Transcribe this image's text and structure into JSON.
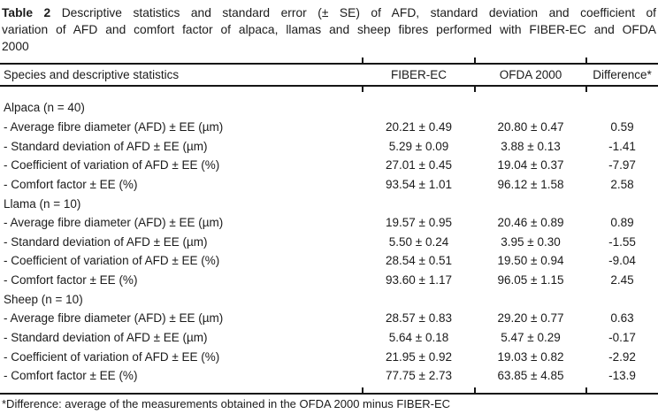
{
  "title": {
    "label": "Table 2",
    "line1": "Descriptive statistics and standard error (± SE) of AFD, standard deviation and coefficient of",
    "line2": "variation of AFD and comfort factor of alpaca, llamas and sheep fibres performed with FIBER-EC and OFDA",
    "line3": "2000"
  },
  "table": {
    "headers": {
      "species": "Species and descriptive statistics",
      "fiber_ec": "FIBER-EC",
      "ofda": "OFDA 2000",
      "difference": "Difference*"
    },
    "sections": [
      {
        "species": "Alpaca (n = 40)",
        "rows": [
          {
            "label": "- Average fibre diameter (AFD) ± EE (µm)",
            "fiber_ec": "20.21 ± 0.49",
            "ofda": "20.80 ± 0.47",
            "difference": "0.59"
          },
          {
            "label": "- Standard deviation of AFD ± EE (µm)",
            "fiber_ec": "5.29 ± 0.09",
            "ofda": "3.88 ± 0.13",
            "difference": "-1.41"
          },
          {
            "label": "- Coefficient of variation of AFD ± EE (%)",
            "fiber_ec": "27.01 ± 0.45",
            "ofda": "19.04 ± 0.37",
            "difference": "-7.97"
          },
          {
            "label": "- Comfort factor ± EE (%)",
            "fiber_ec": "93.54 ± 1.01",
            "ofda": "96.12 ± 1.58",
            "difference": "2.58"
          }
        ]
      },
      {
        "species": "Llama (n = 10)",
        "rows": [
          {
            "label": "- Average fibre diameter (AFD) ± EE (µm)",
            "fiber_ec": "19.57 ± 0.95",
            "ofda": "20.46 ± 0.89",
            "difference": "0.89"
          },
          {
            "label": "- Standard deviation of AFD ± EE (µm)",
            "fiber_ec": "5.50 ± 0.24",
            "ofda": "3.95 ± 0.30",
            "difference": "-1.55"
          },
          {
            "label": "- Coefficient of variation of AFD ± EE (%)",
            "fiber_ec": "28.54 ± 0.51",
            "ofda": "19.50 ± 0.94",
            "difference": "-9.04"
          },
          {
            "label": "- Comfort factor ± EE (%)",
            "fiber_ec": "93.60 ± 1.17",
            "ofda": "96.05 ± 1.15",
            "difference": "2.45"
          }
        ]
      },
      {
        "species": "Sheep (n = 10)",
        "rows": [
          {
            "label": "- Average fibre diameter (AFD) ± EE (µm)",
            "fiber_ec": "28.57 ± 0.83",
            "ofda": "29.20 ± 0.77",
            "difference": "0.63"
          },
          {
            "label": "- Standard deviation of AFD ± EE (µm)",
            "fiber_ec": "5.64 ± 0.18",
            "ofda": "5.47 ± 0.29",
            "difference": "-0.17"
          },
          {
            "label": "- Coefficient of variation of AFD ± EE (%)",
            "fiber_ec": "21.95 ± 0.92",
            "ofda": "19.03 ± 0.82",
            "difference": "-2.92"
          },
          {
            "label": "- Comfort factor ± EE (%)",
            "fiber_ec": "77.75 ± 2.73",
            "ofda": "63.85 ± 4.85",
            "difference": "-13.9"
          }
        ]
      }
    ]
  },
  "footnote": "*Difference: average of the measurements obtained in the OFDA 2000 minus FIBER-EC",
  "colors": {
    "background": "#ffffff",
    "text": "#1b1b1b",
    "rule": "#161616"
  }
}
